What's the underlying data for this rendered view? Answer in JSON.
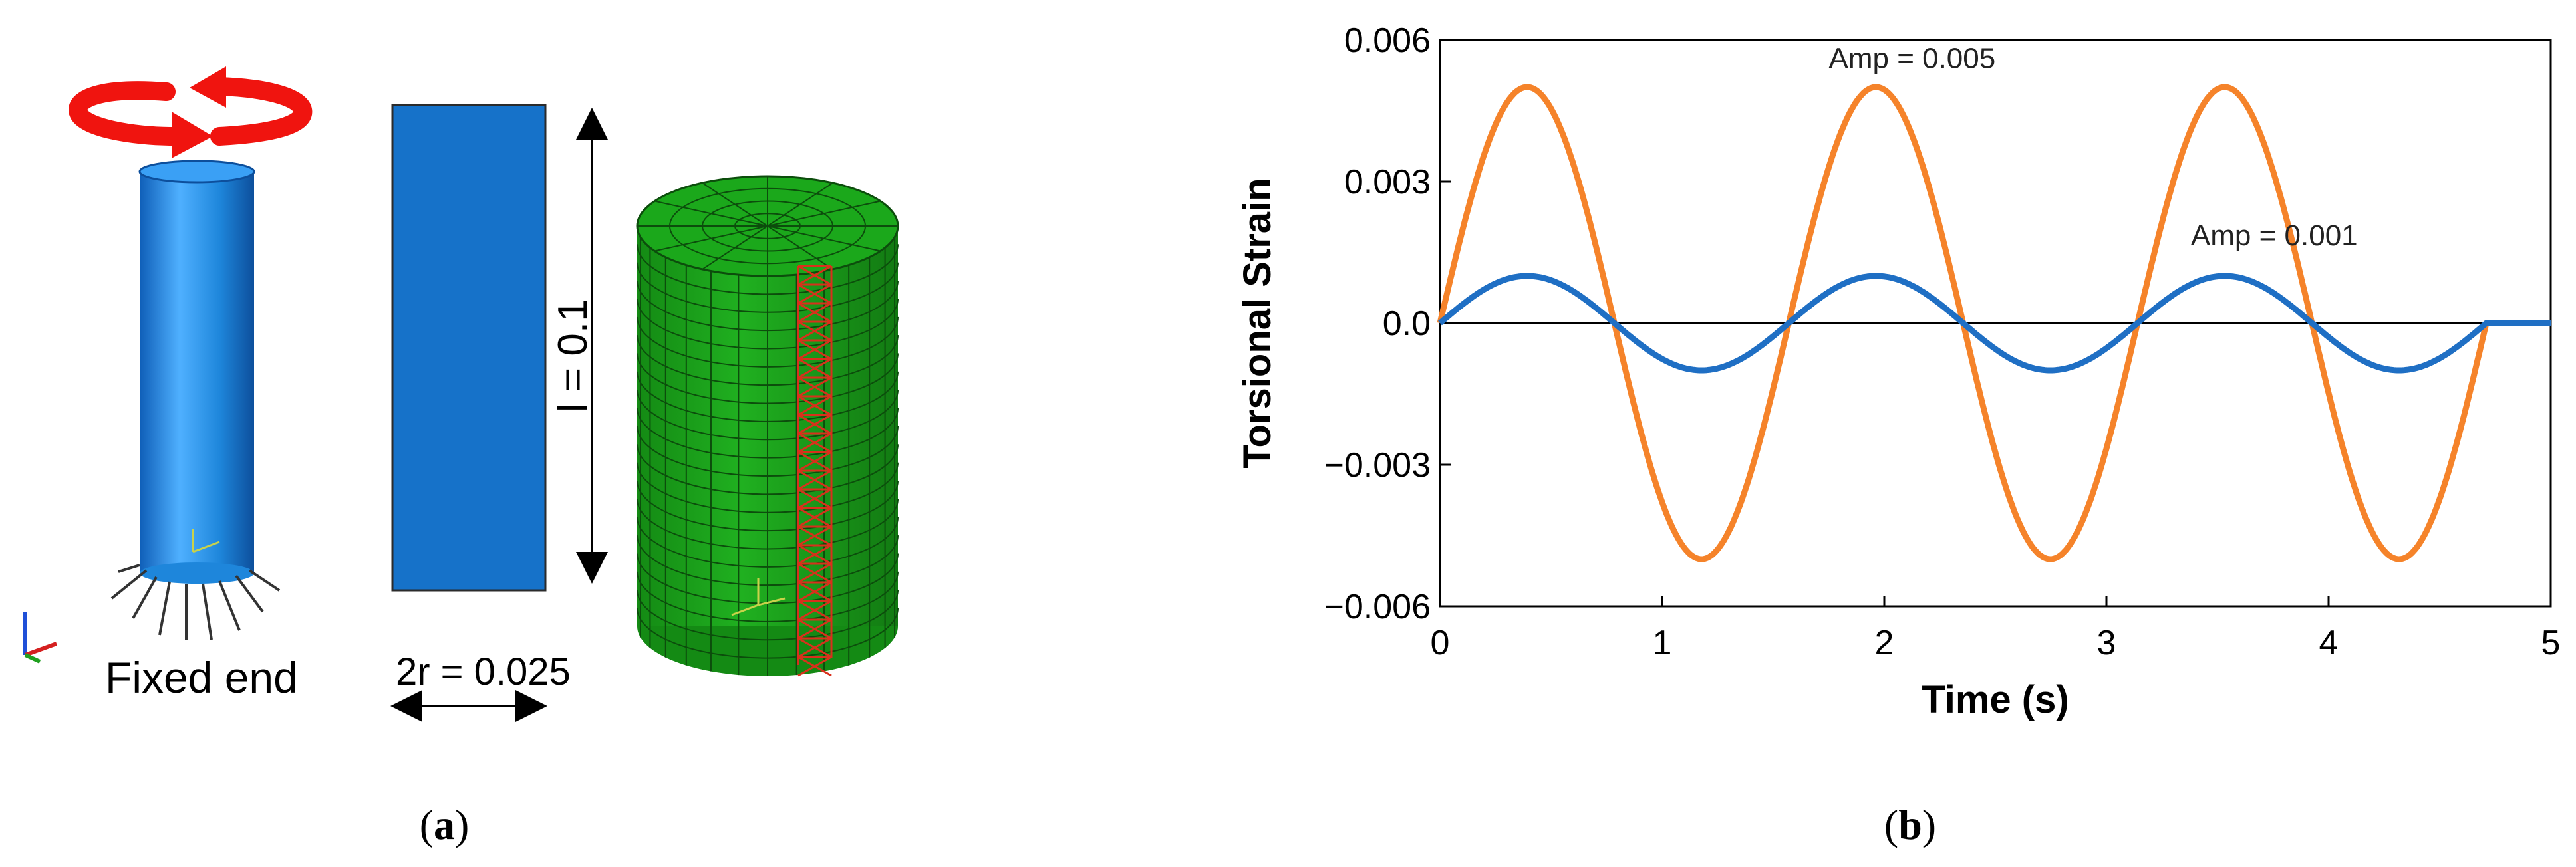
{
  "panel_a": {
    "caption_letter": "a",
    "fixed_end_label": "Fixed end",
    "length_label": "l = 0.1",
    "diameter_label": "2r = 0.025",
    "colors": {
      "rotation_arrow": "#f0140f",
      "cylinder": "#1f86dc",
      "rectangle": "#1672c9",
      "mesh": "#1aa31a",
      "mesh_lines": "#0c4d0c",
      "highlight": "#d9301c"
    }
  },
  "panel_b": {
    "caption_letter": "b",
    "chart_data": {
      "type": "line",
      "xlabel": "Time (s)",
      "ylabel": "Torsional Strain",
      "xlim": [
        0,
        5
      ],
      "ylim": [
        -0.006,
        0.006
      ],
      "x_ticks": [
        "0",
        "1",
        "2",
        "3",
        "4",
        "5"
      ],
      "y_ticks": [
        "0.006",
        "0.003",
        "0.0",
        "−0.003",
        "−0.006"
      ],
      "y_tick_values": [
        0.006,
        0.003,
        0,
        -0.003,
        -0.006
      ],
      "grid": false,
      "series": [
        {
          "label": "Amp = 0.005",
          "amplitude": 0.005,
          "period": 1.57,
          "t_end": 4.71,
          "t_stop": 5.0,
          "color": "#f5832a"
        },
        {
          "label": "Amp = 0.001",
          "amplitude": 0.001,
          "period": 1.57,
          "t_end": 4.71,
          "t_stop": 5.0,
          "color": "#1f6fc4"
        }
      ]
    }
  }
}
